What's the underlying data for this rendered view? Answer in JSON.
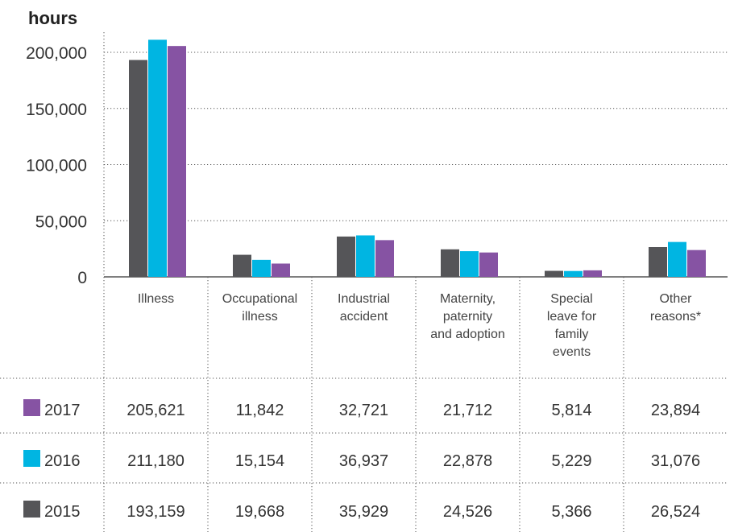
{
  "chart_data": {
    "type": "bar",
    "ylabel": "hours",
    "ylim": [
      0,
      200000
    ],
    "yticks": [
      "0",
      "50,000",
      "100,000",
      "150,000",
      "200,000"
    ],
    "categories": [
      [
        "Illness"
      ],
      [
        "Occupational",
        "illness"
      ],
      [
        "Industrial",
        "accident"
      ],
      [
        "Maternity,",
        "paternity",
        "and adoption"
      ],
      [
        "Special",
        "leave for",
        "family",
        "events"
      ],
      [
        "Other",
        "reasons*"
      ]
    ],
    "series": [
      {
        "name": "2015",
        "color": "#555558",
        "values": [
          193159,
          19668,
          35929,
          24526,
          5366,
          26524
        ],
        "labels": [
          "193,159",
          "19,668",
          "35,929",
          "24,526",
          "5,366",
          "26,524"
        ]
      },
      {
        "name": "2016",
        "color": "#00B5E2",
        "values": [
          211180,
          15154,
          36937,
          22878,
          5229,
          31076
        ],
        "labels": [
          "211,180",
          "15,154",
          "36,937",
          "22,878",
          "5,229",
          "31,076"
        ]
      },
      {
        "name": "2017",
        "color": "#8653A3",
        "values": [
          205621,
          11842,
          32721,
          21712,
          5814,
          23894
        ],
        "labels": [
          "205,621",
          "11,842",
          "32,721",
          "21,712",
          "5,814",
          "23,894"
        ]
      }
    ],
    "table_order": [
      "2017",
      "2016",
      "2015"
    ],
    "grid": "dotted horizontal",
    "legend": "table rows"
  }
}
